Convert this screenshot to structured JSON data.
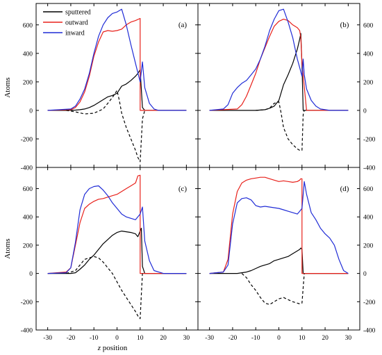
{
  "chart_data": {
    "type": "line",
    "layout": "2x2 panels sharing axes",
    "xlabel_italic": "z",
    "xlabel_rest": " position",
    "ylabel": "Atoms",
    "xlim": [
      -35,
      35
    ],
    "ylim": [
      -400,
      750
    ],
    "xticks": [
      -30,
      -20,
      -10,
      0,
      10,
      20,
      30
    ],
    "yticks": [
      -400,
      -200,
      0,
      200,
      400,
      600
    ],
    "legend_position": "top-left of panel (a)",
    "colors": {
      "sputtered": "#000000",
      "outward": "#e8201a",
      "inward": "#1f2bd6",
      "dashed": "#000000"
    },
    "legend": [
      {
        "name": "sputtered",
        "color": "#000000"
      },
      {
        "name": "outward",
        "color": "#e8201a"
      },
      {
        "name": "inward",
        "color": "#1f2bd6"
      }
    ],
    "panels": [
      {
        "label": "(a)",
        "series": [
          {
            "name": "sputtered",
            "style": "solid",
            "color": "#000000",
            "x": [
              -30,
              -22,
              -18,
              -16,
              -14,
              -12,
              -10,
              -8,
              -6,
              -4,
              -2,
              0,
              2,
              4,
              6,
              8,
              9,
              10,
              11,
              12,
              14,
              16,
              20,
              30
            ],
            "y": [
              0,
              0,
              2,
              5,
              10,
              20,
              35,
              55,
              75,
              95,
              105,
              120,
              170,
              185,
              210,
              240,
              260,
              285,
              20,
              0,
              0,
              0,
              0,
              0
            ]
          },
          {
            "name": "outward",
            "style": "solid",
            "color": "#e8201a",
            "x": [
              -30,
              -20,
              -18,
              -16,
              -14,
              -12,
              -10,
              -8,
              -6,
              -4,
              -2,
              0,
              2,
              4,
              6,
              8,
              10,
              10.01,
              12,
              20,
              30
            ],
            "y": [
              0,
              5,
              20,
              60,
              130,
              240,
              380,
              480,
              550,
              560,
              555,
              560,
              570,
              600,
              620,
              630,
              645,
              0,
              0,
              0,
              0
            ]
          },
          {
            "name": "inward",
            "style": "solid",
            "color": "#1f2bd6",
            "x": [
              -30,
              -20,
              -18,
              -16,
              -14,
              -12,
              -10,
              -8,
              -6,
              -4,
              -2,
              0,
              2,
              4,
              6,
              8,
              10,
              11,
              12,
              14,
              16,
              18,
              20,
              30
            ],
            "y": [
              0,
              10,
              30,
              80,
              150,
              260,
              400,
              520,
              600,
              650,
              680,
              690,
              710,
              600,
              460,
              330,
              200,
              340,
              160,
              50,
              10,
              0,
              0,
              0
            ]
          },
          {
            "name": "",
            "style": "dashed",
            "color": "#000000",
            "x": [
              -22,
              -18,
              -14,
              -10,
              -6,
              -4,
              -2,
              0,
              1,
              2,
              4,
              6,
              8,
              9,
              10,
              11,
              12
            ],
            "y": [
              0,
              -10,
              -25,
              -20,
              10,
              50,
              90,
              140,
              70,
              -20,
              -120,
              -200,
              -280,
              -330,
              -360,
              -60,
              0
            ]
          }
        ]
      },
      {
        "label": "(b)",
        "series": [
          {
            "name": "sputtered",
            "style": "solid",
            "color": "#000000",
            "x": [
              -30,
              -20,
              -10,
              -6,
              -4,
              -2,
              0,
              2,
              4,
              6,
              8,
              9,
              9.5,
              10,
              10.5,
              12,
              14,
              20,
              30
            ],
            "y": [
              0,
              0,
              0,
              5,
              15,
              30,
              70,
              180,
              250,
              330,
              430,
              500,
              540,
              320,
              0,
              0,
              0,
              0,
              0
            ]
          },
          {
            "name": "outward",
            "style": "solid",
            "color": "#e8201a",
            "x": [
              -30,
              -18,
              -16,
              -14,
              -12,
              -10,
              -8,
              -6,
              -4,
              -2,
              0,
              2,
              4,
              6,
              8,
              9,
              9.5,
              10,
              12,
              20,
              30
            ],
            "y": [
              0,
              10,
              40,
              100,
              180,
              260,
              360,
              440,
              520,
              590,
              625,
              640,
              630,
              600,
              580,
              560,
              510,
              330,
              0,
              0,
              0
            ]
          },
          {
            "name": "inward",
            "style": "solid",
            "color": "#1f2bd6",
            "x": [
              -30,
              -24,
              -22,
              -20,
              -18,
              -16,
              -14,
              -12,
              -10,
              -8,
              -6,
              -4,
              -2,
              0,
              2,
              4,
              6,
              8,
              9,
              10,
              10.5,
              11,
              12,
              14,
              16,
              18,
              20,
              22,
              30
            ],
            "y": [
              0,
              10,
              40,
              120,
              160,
              190,
              210,
              250,
              290,
              360,
              450,
              560,
              640,
              700,
              710,
              620,
              510,
              360,
              300,
              240,
              360,
              250,
              150,
              70,
              30,
              10,
              5,
              0,
              0
            ]
          },
          {
            "name": "",
            "style": "dashed",
            "color": "#000000",
            "x": [
              -10,
              -6,
              -4,
              -2,
              0,
              1,
              2,
              4,
              6,
              8,
              9,
              10,
              10.5,
              11
            ],
            "y": [
              0,
              5,
              15,
              50,
              60,
              -20,
              -120,
              -200,
              -240,
              -270,
              -280,
              -280,
              -30,
              0
            ]
          }
        ]
      },
      {
        "label": "(c)",
        "series": [
          {
            "name": "sputtered",
            "style": "solid",
            "color": "#000000",
            "x": [
              -30,
              -20,
              -18,
              -16,
              -14,
              -12,
              -10,
              -8,
              -6,
              -4,
              -2,
              0,
              2,
              4,
              6,
              8,
              9,
              10,
              10.5,
              11,
              12,
              14,
              20,
              30
            ],
            "y": [
              0,
              0,
              5,
              30,
              60,
              100,
              130,
              170,
              210,
              240,
              270,
              290,
              300,
              295,
              290,
              280,
              260,
              300,
              320,
              50,
              0,
              0,
              0,
              0
            ]
          },
          {
            "name": "outward",
            "style": "solid",
            "color": "#e8201a",
            "x": [
              -30,
              -22,
              -20,
              -18,
              -16,
              -14,
              -12,
              -10,
              -8,
              -6,
              -4,
              -2,
              0,
              2,
              4,
              6,
              8,
              9,
              10,
              10.01,
              12,
              20,
              30
            ],
            "y": [
              0,
              10,
              40,
              200,
              360,
              460,
              490,
              510,
              525,
              530,
              540,
              550,
              560,
              580,
              600,
              620,
              640,
              690,
              695,
              0,
              0,
              0,
              0
            ]
          },
          {
            "name": "inward",
            "style": "solid",
            "color": "#1f2bd6",
            "x": [
              -30,
              -22,
              -20,
              -18,
              -16,
              -14,
              -12,
              -10,
              -8,
              -6,
              -4,
              -2,
              0,
              2,
              4,
              6,
              8,
              10,
              11,
              12,
              14,
              16,
              20,
              30
            ],
            "y": [
              0,
              5,
              40,
              220,
              450,
              560,
              600,
              615,
              620,
              590,
              550,
              500,
              460,
              420,
              400,
              390,
              380,
              420,
              470,
              230,
              90,
              20,
              0,
              0
            ]
          },
          {
            "name": "",
            "style": "dashed",
            "color": "#000000",
            "x": [
              -22,
              -18,
              -16,
              -14,
              -12,
              -10,
              -8,
              -6,
              -4,
              -2,
              0,
              2,
              4,
              6,
              8,
              9,
              10,
              10.5,
              11
            ],
            "y": [
              0,
              20,
              60,
              100,
              110,
              120,
              110,
              80,
              40,
              0,
              -60,
              -120,
              -170,
              -220,
              -270,
              -300,
              -320,
              -150,
              0
            ]
          }
        ]
      },
      {
        "label": "(d)",
        "series": [
          {
            "name": "sputtered",
            "style": "solid",
            "color": "#000000",
            "x": [
              -30,
              -18,
              -16,
              -14,
              -12,
              -10,
              -8,
              -6,
              -4,
              -2,
              0,
              2,
              4,
              6,
              8,
              9,
              9.5,
              10,
              10.5,
              12,
              20,
              30
            ],
            "y": [
              0,
              0,
              5,
              10,
              20,
              35,
              50,
              60,
              70,
              90,
              100,
              110,
              120,
              140,
              160,
              170,
              180,
              170,
              0,
              0,
              0,
              0
            ]
          },
          {
            "name": "outward",
            "style": "solid",
            "color": "#e8201a",
            "x": [
              -30,
              -24,
              -22,
              -20,
              -18,
              -16,
              -14,
              -12,
              -10,
              -8,
              -6,
              -4,
              -2,
              0,
              2,
              4,
              6,
              8,
              9,
              9.5,
              10,
              10.01,
              12,
              20,
              30
            ],
            "y": [
              0,
              10,
              100,
              420,
              580,
              640,
              660,
              670,
              675,
              680,
              680,
              670,
              660,
              650,
              655,
              650,
              645,
              650,
              660,
              670,
              670,
              0,
              0,
              0,
              0
            ]
          },
          {
            "name": "inward",
            "style": "solid",
            "color": "#1f2bd6",
            "x": [
              -30,
              -24,
              -22,
              -20,
              -18,
              -16,
              -14,
              -12,
              -10,
              -8,
              -6,
              -4,
              -2,
              0,
              2,
              4,
              6,
              8,
              9,
              10,
              11,
              12,
              14,
              16,
              18,
              20,
              22,
              24,
              26,
              28,
              30
            ],
            "y": [
              0,
              10,
              60,
              350,
              500,
              530,
              535,
              520,
              480,
              470,
              475,
              470,
              465,
              460,
              450,
              440,
              430,
              420,
              440,
              460,
              650,
              560,
              430,
              380,
              320,
              280,
              250,
              200,
              100,
              20,
              0
            ]
          },
          {
            "name": "",
            "style": "dashed",
            "color": "#000000",
            "x": [
              -16,
              -14,
              -12,
              -10,
              -8,
              -6,
              -4,
              -2,
              0,
              2,
              4,
              6,
              8,
              9,
              10,
              10.5,
              11
            ],
            "y": [
              0,
              -30,
              -80,
              -120,
              -170,
              -210,
              -220,
              -200,
              -180,
              -170,
              -185,
              -200,
              -210,
              -215,
              -210,
              -100,
              0
            ]
          }
        ]
      }
    ]
  }
}
